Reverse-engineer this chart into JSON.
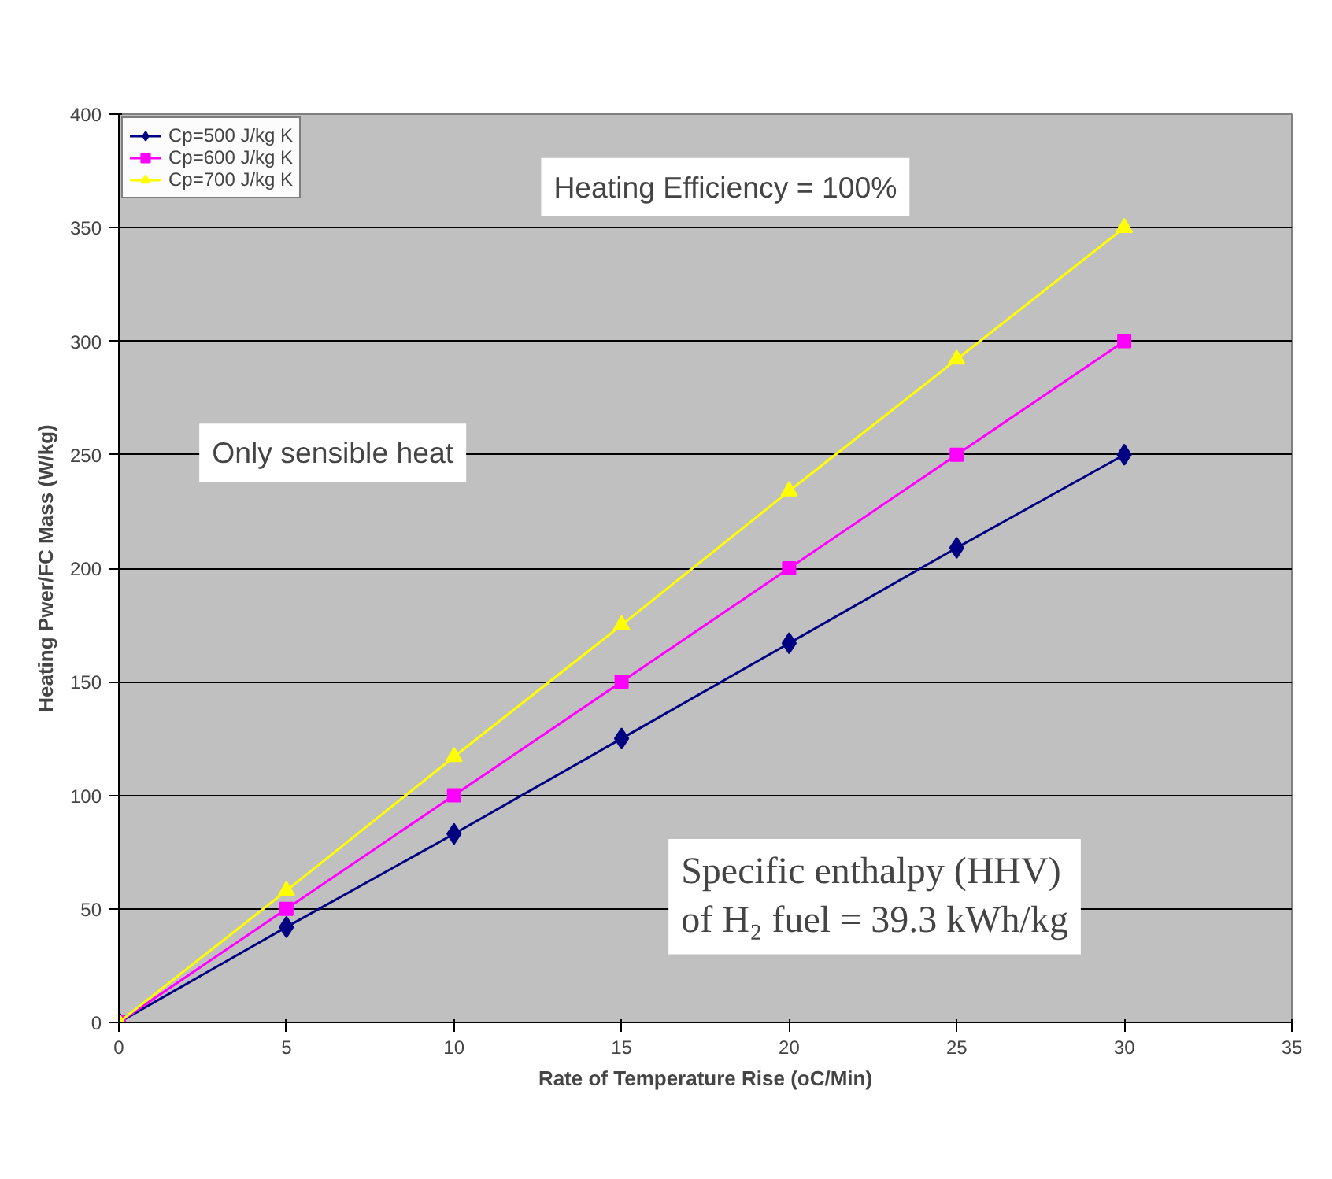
{
  "chart_data": {
    "type": "line",
    "xlabel": "Rate of Temperature Rise (oC/Min)",
    "ylabel": "Heating Pwer/FC Mass (W/kg)",
    "x": [
      0,
      5,
      10,
      15,
      20,
      25,
      30
    ],
    "series": [
      {
        "name": "Cp=500 J/kg K",
        "color": "#000080",
        "marker": "diamond",
        "values": [
          0,
          42,
          83,
          125,
          167,
          209,
          250
        ]
      },
      {
        "name": "Cp=600 J/kg K",
        "color": "#ff00ff",
        "marker": "square",
        "values": [
          0,
          50,
          100,
          150,
          200,
          250,
          300
        ]
      },
      {
        "name": "Cp=700 J/kg K",
        "color": "#ffff00",
        "marker": "triangle",
        "values": [
          0,
          58,
          117,
          175,
          234,
          292,
          350
        ]
      }
    ],
    "xlim": [
      0,
      35
    ],
    "xticks": [
      0,
      5,
      10,
      15,
      20,
      25,
      30,
      35
    ],
    "ylim": [
      0,
      400
    ],
    "yticks": [
      0,
      50,
      100,
      150,
      200,
      250,
      300,
      350,
      400
    ],
    "grid": "y",
    "legend": "top left",
    "line_style": "solid",
    "annotations": [
      "Heating Efficiency = 100%",
      "Only sensible heat",
      "Specific enthalpy (HHV)\nof H₂ fuel = 39.3 kWh/kg"
    ]
  }
}
